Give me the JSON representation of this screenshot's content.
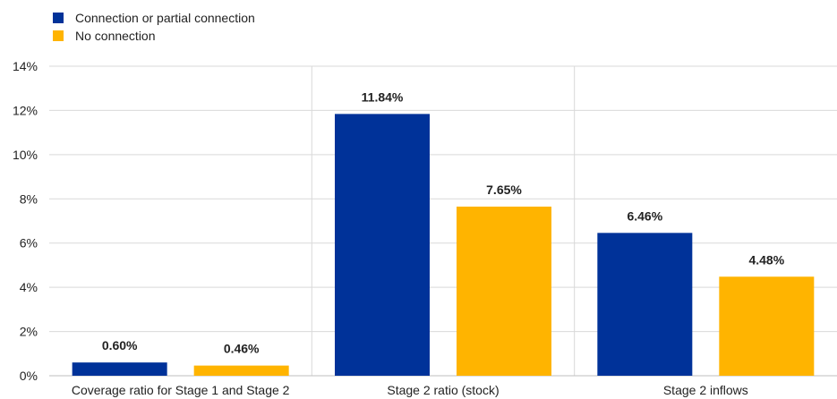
{
  "chart_data": {
    "type": "bar",
    "categories": [
      "Coverage ratio for Stage 1 and Stage 2",
      "Stage 2 ratio (stock)",
      "Stage 2 inflows"
    ],
    "series": [
      {
        "name": "Connection or partial connection",
        "color": "#003299",
        "values": [
          0.6,
          11.84,
          6.46
        ],
        "labels": [
          "0.60%",
          "11.84%",
          "6.46%"
        ]
      },
      {
        "name": "No connection",
        "color": "#FFB400",
        "values": [
          0.46,
          7.65,
          4.48
        ],
        "labels": [
          "0.46%",
          "7.65%",
          "4.48%"
        ]
      }
    ],
    "y_ticks": [
      "0%",
      "2%",
      "4%",
      "6%",
      "8%",
      "10%",
      "12%",
      "14%"
    ],
    "ylim": [
      0,
      14
    ],
    "unit": "%",
    "legend_position": "top-left",
    "grid": "horizontal"
  }
}
